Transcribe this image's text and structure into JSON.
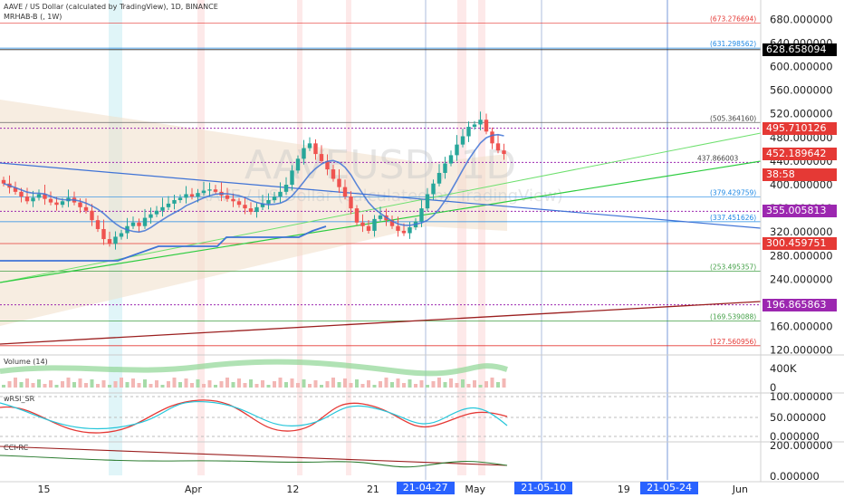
{
  "header": {
    "title": "AAVE / US Dollar (calculated by TradingView), 1D, BINANCE",
    "indicator": "MRHAB-B (, 1W)"
  },
  "colors": {
    "up": "#26a69a",
    "down": "#ef5350",
    "trendline_green": "#3fd83f",
    "blue_line": "#3f73d6",
    "maroon_line": "#9b1f1f",
    "purple": "#9c27b0",
    "blue_tag": "#2962ff"
  },
  "watermark": "AAVEUSD, 1D",
  "watermark2": "AAVE / US Dollar (calculated by TradingView)",
  "price_tags": [
    {
      "label": "628.658094",
      "value": 628.658094,
      "bg": "#000000"
    },
    {
      "label": "495.710126",
      "value": 495.710126,
      "bg": "#e53935"
    },
    {
      "label": "452.189642",
      "value": 452.189642,
      "bg": "#e53935"
    },
    {
      "label": "38:58",
      "value": 437.5,
      "bg": "#e53935"
    },
    {
      "label": "355.005813",
      "value": 355.005813,
      "bg": "#9c27b0"
    },
    {
      "label": "300.459751",
      "value": 300.459751,
      "bg": "#e53935"
    },
    {
      "label": "196.865863",
      "value": 196.865863,
      "bg": "#9c27b0"
    }
  ],
  "level_labels": [
    {
      "label": "(673.276694)",
      "value": 673.276694,
      "color": "#e53935"
    },
    {
      "label": "(631.298562)",
      "value": 631.298562,
      "color": "#1e88e5"
    },
    {
      "label": "(505.364160)",
      "value": 505.36416,
      "color": "#444444"
    },
    {
      "label": "437.866003",
      "value": 437.866003,
      "color": "#444444"
    },
    {
      "label": "(379.429759)",
      "value": 379.429759,
      "color": "#1e88e5"
    },
    {
      "label": "(337.451626)",
      "value": 337.451626,
      "color": "#1e88e5"
    },
    {
      "label": "(253.495357)",
      "value": 253.495357,
      "color": "#43a047"
    },
    {
      "label": "(169.539088)",
      "value": 169.539088,
      "color": "#43a047"
    },
    {
      "label": "(127.560956)",
      "value": 127.560956,
      "color": "#e53935"
    }
  ],
  "panes": {
    "volume": {
      "title": "Volume (14)",
      "ticks": [
        "400K",
        "0"
      ]
    },
    "wrsi": {
      "title": "wRSI_SR",
      "ticks": [
        "100.000000",
        "50.000000",
        "0.000000"
      ]
    },
    "cci": {
      "title": "CCI-RC",
      "ticks": [
        "200.000000",
        "0.000000"
      ]
    }
  },
  "x_ticks": [
    {
      "label": "15",
      "x": 0.052
    },
    {
      "label": "Apr",
      "x": 0.229
    },
    {
      "label": "12",
      "x": 0.347
    },
    {
      "label": "21",
      "x": 0.442
    },
    {
      "label": "May",
      "x": 0.563
    },
    {
      "label": "19",
      "x": 0.739
    },
    {
      "label": "Jun",
      "x": 0.877
    }
  ],
  "x_tags": [
    {
      "label": "21-04-27",
      "x": 0.504
    },
    {
      "label": "21-05-10",
      "x": 0.644
    },
    {
      "label": "21-05-24",
      "x": 0.793
    }
  ],
  "chart_data": {
    "type": "candlestick",
    "symbol": "AAVE / US Dollar",
    "interval": "1D",
    "exchange": "BINANCE",
    "y_ticks": [
      120,
      160,
      200,
      240,
      280,
      320,
      360,
      400,
      440,
      480,
      520,
      560,
      600,
      640,
      680
    ],
    "y_tick_labels": [
      "120.000000",
      "160.000000",
      "200.000000",
      "240.000000",
      "280.000000",
      "320.000000",
      "360.000000",
      "400.000000",
      "440.000000",
      "480.000000",
      "520.000000",
      "560.000000",
      "600.000000",
      "640.000000",
      "680.000000"
    ],
    "ylim": [
      115,
      705
    ],
    "closes": [
      402,
      395,
      388,
      380,
      372,
      378,
      384,
      376,
      370,
      366,
      372,
      378,
      370,
      362,
      356,
      340,
      325,
      308,
      300,
      312,
      318,
      330,
      336,
      330,
      344,
      350,
      356,
      362,
      368,
      374,
      378,
      384,
      380,
      386,
      390,
      392,
      388,
      382,
      376,
      372,
      366,
      360,
      354,
      362,
      368,
      374,
      380,
      388,
      400,
      424,
      444,
      462,
      470,
      452,
      440,
      426,
      410,
      396,
      380,
      360,
      336,
      330,
      322,
      342,
      348,
      340,
      330,
      322,
      318,
      328,
      338,
      360,
      384,
      402,
      420,
      436,
      450,
      468,
      482,
      498,
      502,
      510,
      490,
      470,
      458,
      452
    ],
    "wicks_high_extra": 14,
    "wicks_low_extra": 12,
    "horizontal_levels": [
      673.276694,
      631.298562,
      628.658094,
      505.36416,
      495.710126,
      437.866003,
      379.429759,
      355.005813,
      337.451626,
      300.459751,
      253.495357,
      196.865863,
      169.539088,
      127.560956
    ]
  }
}
